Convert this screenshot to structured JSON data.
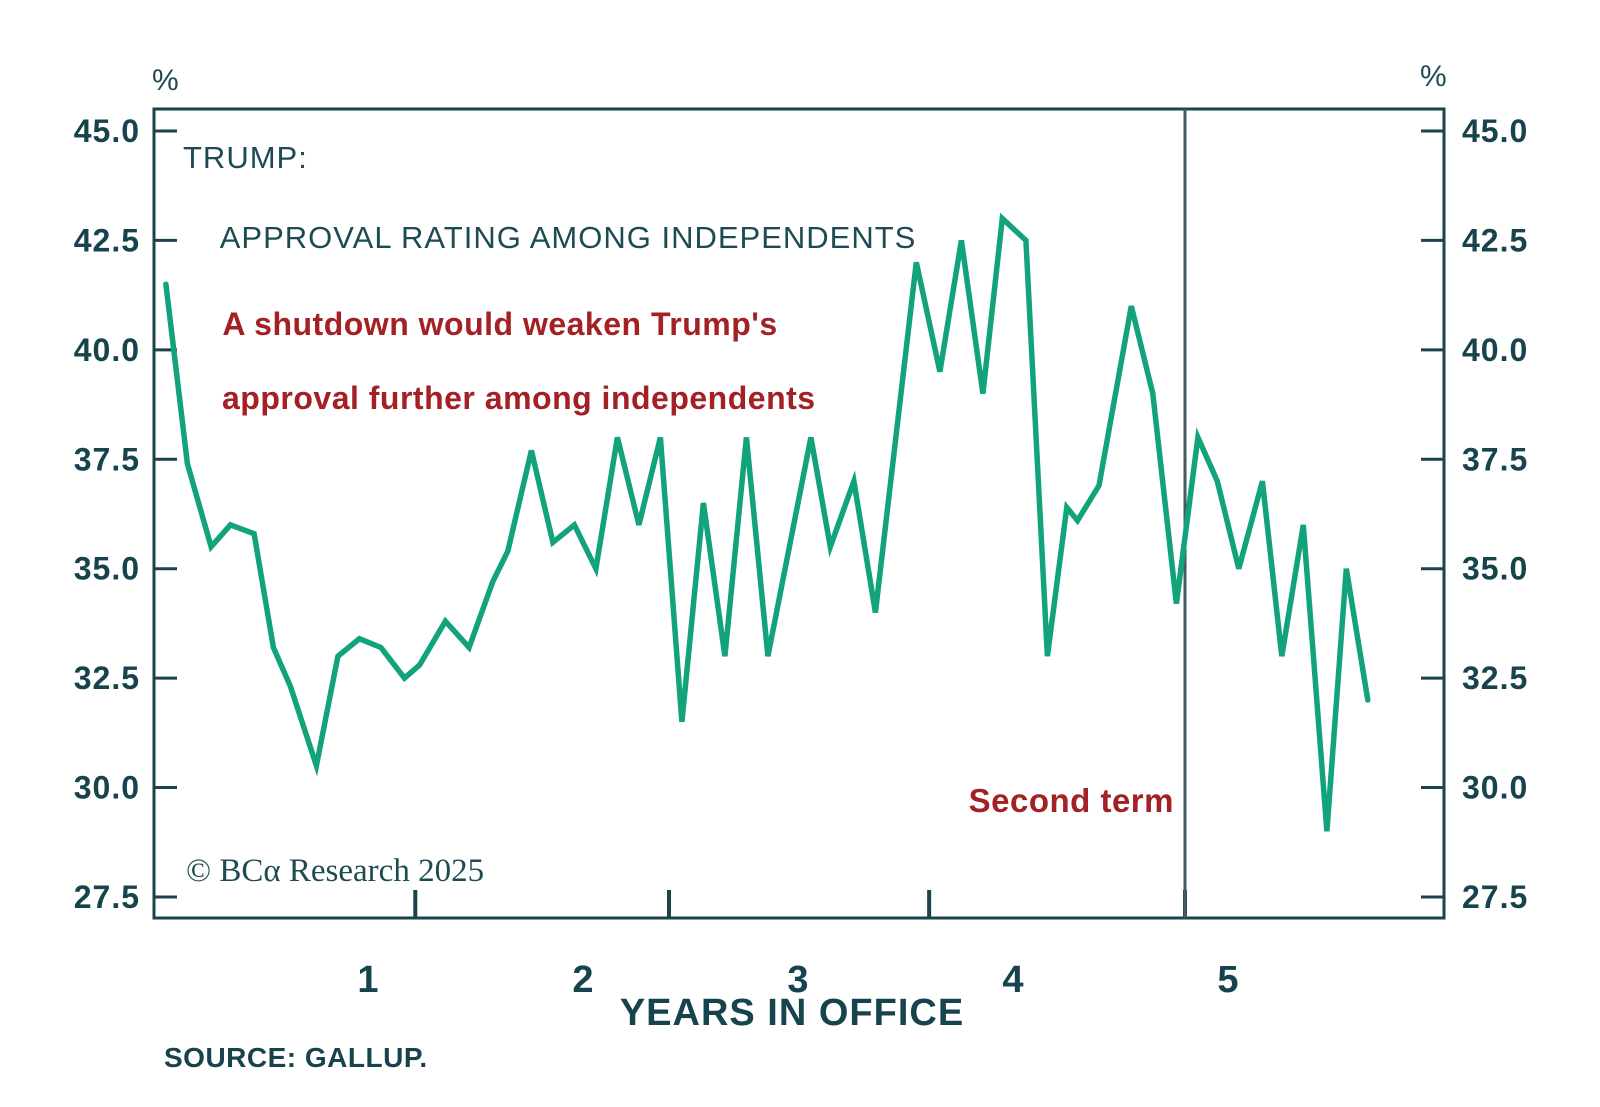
{
  "chart": {
    "percent_left": "%",
    "percent_right": "%",
    "title_line1": "TRUMP:",
    "title_line2": "APPROVAL RATING AMONG INDEPENDENTS",
    "annotation_line1": "A shutdown would weaken Trump's",
    "annotation_line2": "approval further among independents",
    "second_term_label": "Second term",
    "watermark": "© BCα Research 2025",
    "x_axis_title": "YEARS IN OFFICE",
    "source": "SOURCE: GALLUP."
  },
  "colors": {
    "line": "#12a37c",
    "axis": "#1c424c",
    "tick_label": "#17434d",
    "title_text": "#1d4b54",
    "red_text": "#a32024",
    "second_term_line": "#455a62",
    "background": "#ffffff"
  },
  "chart_data": {
    "type": "line",
    "title": "TRUMP: APPROVAL RATING AMONG INDEPENDENTS",
    "xlabel": "YEARS IN OFFICE",
    "ylabel": "%",
    "xlim": [
      0,
      6.0
    ],
    "ylim": [
      27.5,
      45.0
    ],
    "grid": false,
    "y_ticks": [
      45.0,
      42.5,
      40.0,
      37.5,
      35.0,
      32.5,
      30.0,
      27.5
    ],
    "y_tick_format": [
      "45.0",
      "42.5",
      "40.0",
      "37.5",
      "35.0",
      "32.5",
      "30.0",
      "27.5"
    ],
    "x_tick_labels": [
      "1",
      "2",
      "3",
      "4",
      "5"
    ],
    "x_tick_label_years": [
      1,
      2,
      3,
      4,
      5
    ],
    "x_minor_tick_years": [
      1.22,
      2.4,
      3.61,
      4.8
    ],
    "second_term_line_x": 4.8,
    "series": [
      {
        "name": "Trump approval rating among independents (%)",
        "points": [
          [
            0.06,
            41.5
          ],
          [
            0.16,
            37.4
          ],
          [
            0.27,
            35.5
          ],
          [
            0.36,
            36.0
          ],
          [
            0.47,
            35.8
          ],
          [
            0.56,
            33.2
          ],
          [
            0.64,
            32.3
          ],
          [
            0.76,
            30.5
          ],
          [
            0.86,
            33.0
          ],
          [
            0.96,
            33.4
          ],
          [
            1.06,
            33.2
          ],
          [
            1.17,
            32.5
          ],
          [
            1.24,
            32.8
          ],
          [
            1.36,
            33.8
          ],
          [
            1.47,
            33.2
          ],
          [
            1.58,
            34.7
          ],
          [
            1.65,
            35.4
          ],
          [
            1.76,
            37.7
          ],
          [
            1.86,
            35.6
          ],
          [
            1.96,
            36.0
          ],
          [
            2.06,
            35.0
          ],
          [
            2.16,
            38.0
          ],
          [
            2.26,
            36.0
          ],
          [
            2.36,
            38.0
          ],
          [
            2.46,
            31.5
          ],
          [
            2.56,
            36.5
          ],
          [
            2.66,
            33.0
          ],
          [
            2.76,
            38.0
          ],
          [
            2.86,
            33.0
          ],
          [
            3.06,
            38.0
          ],
          [
            3.15,
            35.5
          ],
          [
            3.26,
            37.0
          ],
          [
            3.36,
            34.0
          ],
          [
            3.55,
            42.0
          ],
          [
            3.66,
            39.5
          ],
          [
            3.76,
            42.5
          ],
          [
            3.86,
            39.0
          ],
          [
            3.95,
            43.0
          ],
          [
            4.06,
            42.5
          ],
          [
            4.16,
            33.0
          ],
          [
            4.25,
            36.4
          ],
          [
            4.3,
            36.1
          ],
          [
            4.4,
            36.9
          ],
          [
            4.55,
            41.0
          ],
          [
            4.65,
            39.0
          ],
          [
            4.76,
            34.2
          ],
          [
            4.86,
            38.0
          ],
          [
            4.95,
            37.0
          ],
          [
            5.05,
            35.0
          ],
          [
            5.16,
            37.0
          ],
          [
            5.25,
            33.0
          ],
          [
            5.35,
            36.0
          ],
          [
            5.46,
            29.0
          ],
          [
            5.55,
            35.0
          ],
          [
            5.65,
            32.0
          ]
        ]
      }
    ]
  }
}
